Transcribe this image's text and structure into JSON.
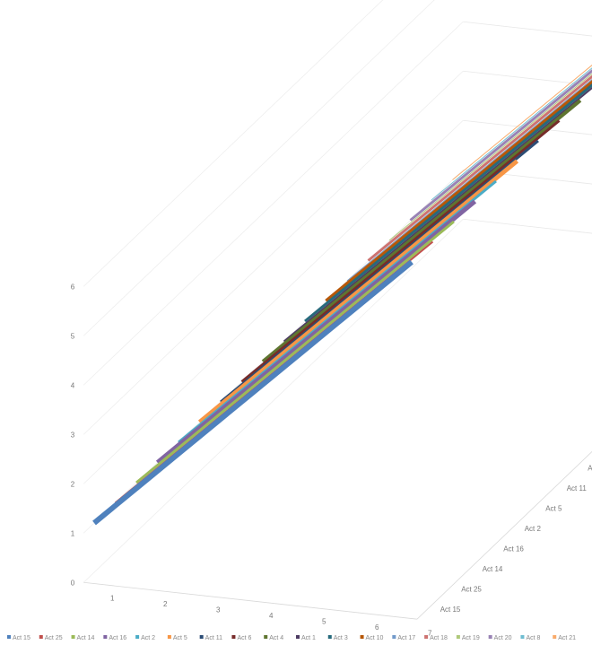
{
  "chart_data": {
    "type": "line",
    "subtype": "3d-line",
    "title": "",
    "xlabel": "",
    "ylabel": "",
    "zlabel": "",
    "x": [
      1,
      2,
      3,
      4,
      5,
      6,
      7
    ],
    "ylim": [
      0,
      6
    ],
    "yticks": [
      0,
      1,
      2,
      3,
      4,
      5,
      6
    ],
    "depth_categories": [
      "Act 15",
      "Act 25",
      "Act 14",
      "Act 16",
      "Act 2",
      "Act 5",
      "Act 11",
      "Act 6",
      "Act 4",
      "Act 1",
      "Act 3",
      "Act 10",
      "Act 17",
      "Act 18",
      "Act 19",
      "Act 20",
      "Act 8",
      "Act 21"
    ],
    "legend_position": "bottom",
    "grid": true,
    "series": [
      {
        "name": "Act 15",
        "color": "#4f81bd",
        "values": [
          1,
          2,
          3,
          4,
          5,
          6,
          7
        ]
      },
      {
        "name": "Act 25",
        "color": "#c0504d",
        "values": [
          1,
          2,
          3,
          4,
          5,
          6,
          7
        ]
      },
      {
        "name": "Act 14",
        "color": "#9bbb59",
        "values": [
          1,
          2,
          3,
          4,
          5,
          6,
          7
        ]
      },
      {
        "name": "Act 16",
        "color": "#8064a2",
        "values": [
          1,
          2,
          3,
          4,
          5,
          6,
          7
        ]
      },
      {
        "name": "Act 2",
        "color": "#4bacc6",
        "values": [
          1,
          2,
          3,
          4,
          5,
          6,
          7
        ]
      },
      {
        "name": "Act 5",
        "color": "#f79646",
        "values": [
          1,
          2,
          3,
          4,
          5,
          6,
          7
        ]
      },
      {
        "name": "Act 11",
        "color": "#2c4d75",
        "values": [
          1,
          2,
          3,
          4,
          5,
          6,
          7
        ]
      },
      {
        "name": "Act 6",
        "color": "#772c2a",
        "values": [
          1,
          2,
          3,
          4,
          5,
          6,
          7
        ]
      },
      {
        "name": "Act 4",
        "color": "#5f7530",
        "values": [
          1,
          2,
          3,
          4,
          5,
          6,
          7
        ]
      },
      {
        "name": "Act 1",
        "color": "#4d3b62",
        "values": [
          1,
          2,
          3,
          4,
          5,
          6,
          7
        ]
      },
      {
        "name": "Act 3",
        "color": "#276a7c",
        "values": [
          1,
          2,
          3,
          4,
          5,
          6,
          7
        ]
      },
      {
        "name": "Act 10",
        "color": "#b65708",
        "values": [
          1,
          2,
          3,
          4,
          5,
          6,
          7
        ]
      },
      {
        "name": "Act 17",
        "color": "#729aca",
        "values": [
          1,
          2,
          3,
          4,
          5,
          6,
          7
        ]
      },
      {
        "name": "Act 18",
        "color": "#cd7371",
        "values": [
          1,
          2,
          3,
          4,
          5,
          6,
          7
        ]
      },
      {
        "name": "Act 19",
        "color": "#afc97a",
        "values": [
          1,
          2,
          3,
          4,
          5,
          6,
          7
        ]
      },
      {
        "name": "Act 20",
        "color": "#9983b5",
        "values": [
          1,
          2,
          3,
          4,
          5,
          6,
          7
        ]
      },
      {
        "name": "Act 8",
        "color": "#6fbdd1",
        "values": [
          1,
          2,
          3,
          4,
          5,
          6,
          7
        ]
      },
      {
        "name": "Act 21",
        "color": "#f9ab6b",
        "values": [
          1,
          2,
          3,
          4,
          5,
          6,
          7
        ]
      }
    ],
    "legend": [
      "Act 15",
      "Act 25",
      "Act 14",
      "Act 16",
      "Act 2",
      "Act 5",
      "Act 11",
      "Act 6",
      "Act 4",
      "Act 1",
      "Act 3",
      "Act 10",
      "Act 17",
      "Act 18",
      "Act 19",
      "Act 20",
      "Act 8",
      "Act 21"
    ]
  }
}
